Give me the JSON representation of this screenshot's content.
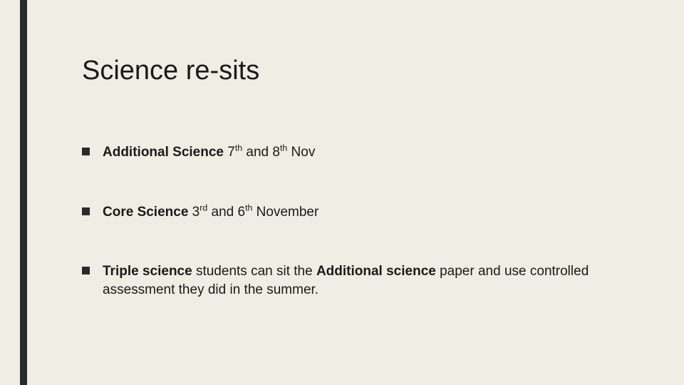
{
  "slide": {
    "background_color": "#efede4",
    "accent_bar_color": "#2a2a2a",
    "text_color": "#1a1a1a",
    "title": "Science re-sits",
    "title_fontsize": 38,
    "body_fontsize": 19,
    "bullets": [
      {
        "bold_prefix": "Additional Science",
        "text_after_bold": " 7",
        "sup1": "th",
        "mid": " and 8",
        "sup2": "th",
        "suffix": " Nov"
      },
      {
        "bold_prefix": "Core Science",
        "text_after_bold": "  3",
        "sup1": "rd",
        "mid": " and 6",
        "sup2": "th",
        "suffix": " November"
      },
      {
        "bold_prefix": "Triple science",
        "text_after_bold": " students can sit the ",
        "bold_mid": "Additional science",
        "suffix": " paper and use controlled assessment they did in the summer."
      }
    ]
  }
}
